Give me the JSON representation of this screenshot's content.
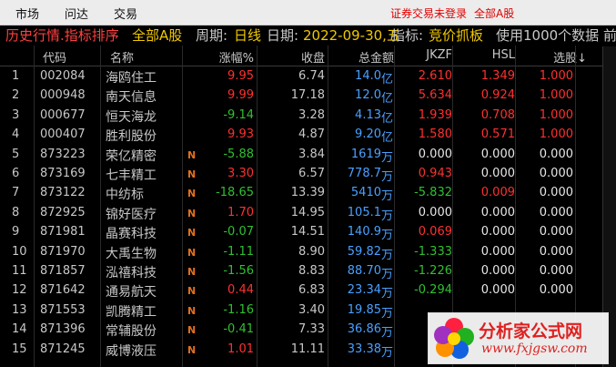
{
  "menu": {
    "items": [
      "市场",
      "问达",
      "交易"
    ],
    "status_not_logged": "证券交易未登录",
    "market_label": "全部A股"
  },
  "infobar": {
    "title": "历史行情.指标排序",
    "market": "全部A股",
    "period_label": "周期:",
    "period_value": "日线",
    "date_label": "日期:",
    "date_value": "2022-09-30,五",
    "indicator_label": "指标:",
    "indicator_value": "竞价抓板",
    "data_info": "使用1000个数据 前"
  },
  "table": {
    "headers": [
      "代码",
      "名称",
      "涨幅%",
      "收盘",
      "总金额",
      "JKZF",
      "HSL",
      "选股↓"
    ],
    "rows": [
      {
        "num": "1",
        "code": "002084",
        "name": "海鸥住工",
        "flag": "",
        "chg": "9.95",
        "chg_color": "red",
        "close": "6.74",
        "amt": "14.0",
        "unit": "亿",
        "jkzf": "2.610",
        "jkzf_color": "red",
        "hsl": "1.349",
        "hsl_color": "red",
        "xg": "1.000",
        "xg_color": "red"
      },
      {
        "num": "2",
        "code": "000948",
        "name": "南天信息",
        "flag": "",
        "chg": "9.99",
        "chg_color": "red",
        "close": "17.18",
        "amt": "12.0",
        "unit": "亿",
        "jkzf": "5.634",
        "jkzf_color": "red",
        "hsl": "0.924",
        "hsl_color": "red",
        "xg": "1.000",
        "xg_color": "red"
      },
      {
        "num": "3",
        "code": "000677",
        "name": "恒天海龙",
        "flag": "",
        "chg": "-9.14",
        "chg_color": "green",
        "close": "3.28",
        "amt": "4.13",
        "unit": "亿",
        "jkzf": "1.939",
        "jkzf_color": "red",
        "hsl": "0.708",
        "hsl_color": "red",
        "xg": "1.000",
        "xg_color": "red"
      },
      {
        "num": "4",
        "code": "000407",
        "name": "胜利股份",
        "flag": "",
        "chg": "9.93",
        "chg_color": "red",
        "close": "4.87",
        "amt": "9.20",
        "unit": "亿",
        "jkzf": "1.580",
        "jkzf_color": "red",
        "hsl": "0.571",
        "hsl_color": "red",
        "xg": "1.000",
        "xg_color": "red"
      },
      {
        "num": "5",
        "code": "873223",
        "name": "荣亿精密",
        "flag": "N",
        "chg": "-5.88",
        "chg_color": "green",
        "close": "3.84",
        "amt": "1619",
        "unit": "万",
        "jkzf": "0.000",
        "jkzf_color": "white",
        "hsl": "0.000",
        "hsl_color": "white",
        "xg": "0.000",
        "xg_color": "white"
      },
      {
        "num": "6",
        "code": "873169",
        "name": "七丰精工",
        "flag": "N",
        "chg": "3.30",
        "chg_color": "red",
        "close": "6.57",
        "amt": "778.7",
        "unit": "万",
        "jkzf": "0.943",
        "jkzf_color": "red",
        "hsl": "0.000",
        "hsl_color": "white",
        "xg": "0.000",
        "xg_color": "white"
      },
      {
        "num": "7",
        "code": "873122",
        "name": "中纺标",
        "flag": "N",
        "chg": "-18.65",
        "chg_color": "green",
        "close": "13.39",
        "amt": "5410",
        "unit": "万",
        "jkzf": "-5.832",
        "jkzf_color": "green",
        "hsl": "0.009",
        "hsl_color": "red",
        "xg": "0.000",
        "xg_color": "white"
      },
      {
        "num": "8",
        "code": "872925",
        "name": "锦好医疗",
        "flag": "N",
        "chg": "1.70",
        "chg_color": "red",
        "close": "14.95",
        "amt": "105.1",
        "unit": "万",
        "jkzf": "0.000",
        "jkzf_color": "white",
        "hsl": "0.000",
        "hsl_color": "white",
        "xg": "0.000",
        "xg_color": "white"
      },
      {
        "num": "9",
        "code": "871981",
        "name": "晶赛科技",
        "flag": "N",
        "chg": "-0.07",
        "chg_color": "green",
        "close": "14.51",
        "amt": "140.9",
        "unit": "万",
        "jkzf": "0.069",
        "jkzf_color": "red",
        "hsl": "0.000",
        "hsl_color": "white",
        "xg": "0.000",
        "xg_color": "white"
      },
      {
        "num": "10",
        "code": "871970",
        "name": "大禹生物",
        "flag": "N",
        "chg": "-1.11",
        "chg_color": "green",
        "close": "8.90",
        "amt": "59.82",
        "unit": "万",
        "jkzf": "-1.333",
        "jkzf_color": "green",
        "hsl": "0.000",
        "hsl_color": "white",
        "xg": "0.000",
        "xg_color": "white"
      },
      {
        "num": "11",
        "code": "871857",
        "name": "泓禧科技",
        "flag": "N",
        "chg": "-1.56",
        "chg_color": "green",
        "close": "8.83",
        "amt": "88.70",
        "unit": "万",
        "jkzf": "-1.226",
        "jkzf_color": "green",
        "hsl": "0.000",
        "hsl_color": "white",
        "xg": "0.000",
        "xg_color": "white"
      },
      {
        "num": "12",
        "code": "871642",
        "name": "通易航天",
        "flag": "N",
        "chg": "0.44",
        "chg_color": "red",
        "close": "6.83",
        "amt": "23.34",
        "unit": "万",
        "jkzf": "-0.294",
        "jkzf_color": "green",
        "hsl": "0.000",
        "hsl_color": "white",
        "xg": "0.000",
        "xg_color": "white"
      },
      {
        "num": "13",
        "code": "871553",
        "name": "凯腾精工",
        "flag": "N",
        "chg": "-1.16",
        "chg_color": "green",
        "close": "3.40",
        "amt": "19.85",
        "unit": "万",
        "jkzf": "",
        "jkzf_color": "white",
        "hsl": "",
        "hsl_color": "white",
        "xg": "",
        "xg_color": "white"
      },
      {
        "num": "14",
        "code": "871396",
        "name": "常辅股份",
        "flag": "N",
        "chg": "-0.41",
        "chg_color": "green",
        "close": "7.33",
        "amt": "36.86",
        "unit": "万",
        "jkzf": "",
        "jkzf_color": "white",
        "hsl": "",
        "hsl_color": "white",
        "xg": "",
        "xg_color": "white"
      },
      {
        "num": "15",
        "code": "871245",
        "name": "威博液压",
        "flag": "N",
        "chg": "1.01",
        "chg_color": "red",
        "close": "11.11",
        "amt": "33.38",
        "unit": "万",
        "jkzf": "",
        "jkzf_color": "white",
        "hsl": "",
        "hsl_color": "white",
        "xg": "",
        "xg_color": "white"
      }
    ]
  },
  "watermark": {
    "title": "分析家公式网",
    "url": "www.fxjgsw.com"
  }
}
